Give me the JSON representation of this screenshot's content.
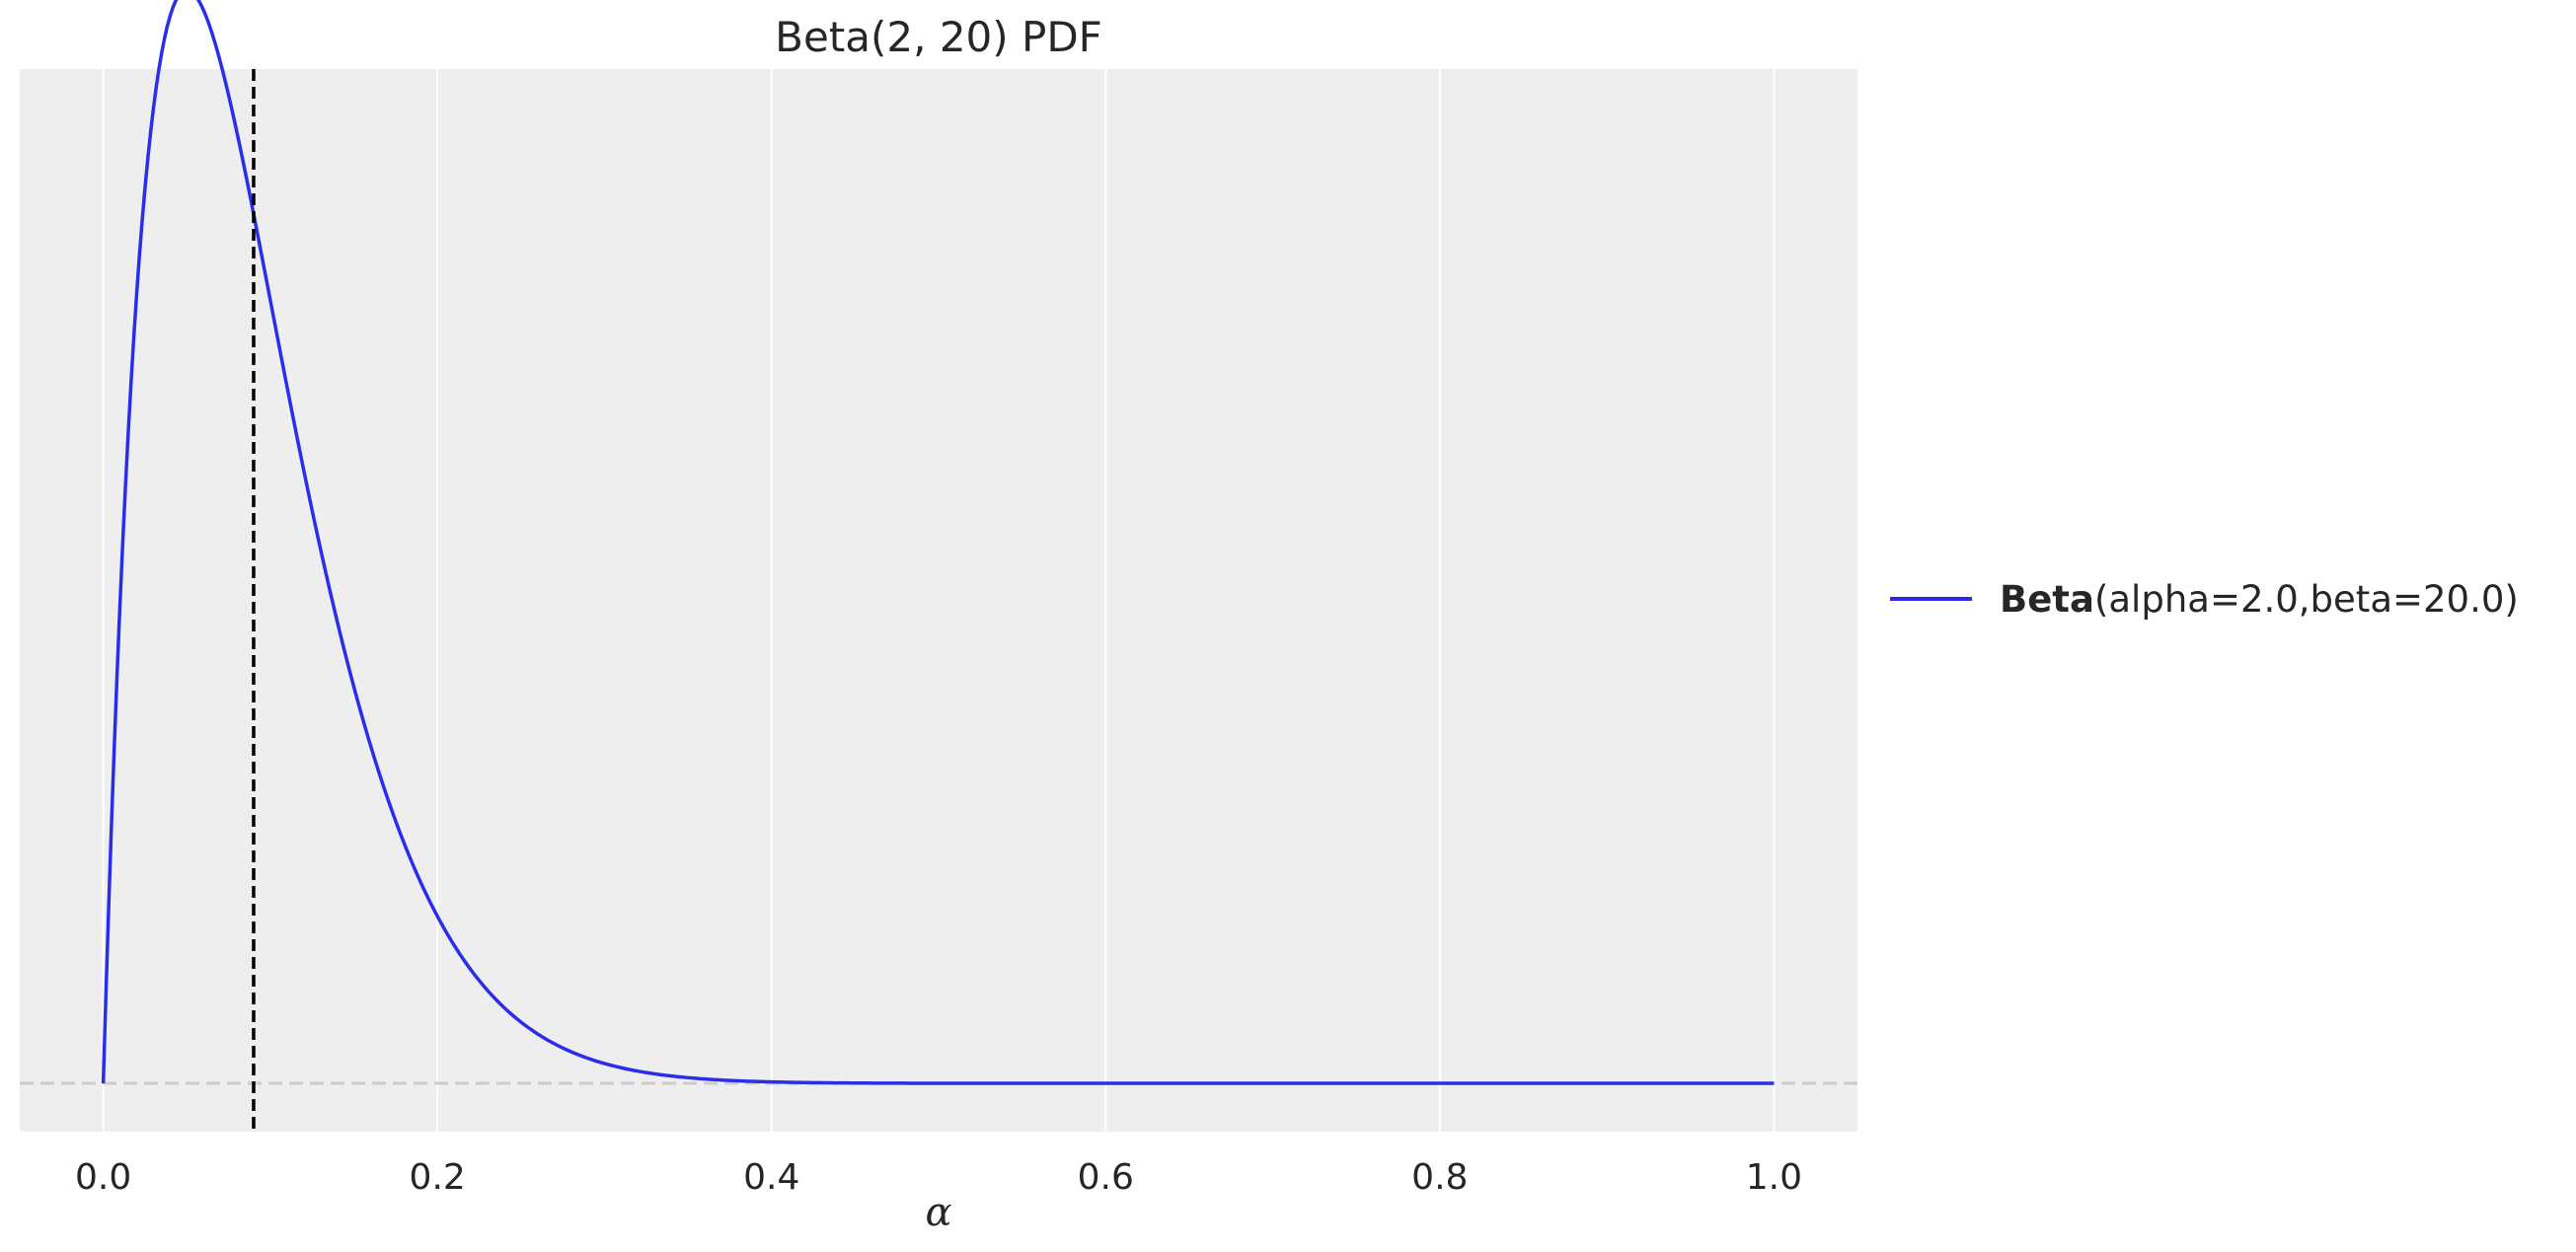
{
  "chart_data": {
    "type": "line",
    "title": "Beta(2, 20) PDF",
    "xlabel": "α",
    "ylabel": "",
    "xlim": [
      -0.05,
      1.05
    ],
    "ylim": [
      -0.35,
      7.35
    ],
    "xticks": [
      0.0,
      0.2,
      0.4,
      0.6,
      0.8,
      1.0
    ],
    "xtick_labels": [
      "0.0",
      "0.2",
      "0.4",
      "0.6",
      "0.8",
      "1.0"
    ],
    "grid": "vertical",
    "legend_placement": "right",
    "series": [
      {
        "legend_bold": "Beta",
        "legend_rest": "(alpha=2.0,beta=20.0)",
        "color": "#2a2eec",
        "distribution": "beta",
        "alpha": 2.0,
        "beta": 20.0,
        "x_range": [
          0.0,
          1.0
        ]
      }
    ],
    "reference_lines": [
      {
        "orientation": "vertical",
        "x": 0.09,
        "style": "dashed",
        "color": "#000000"
      },
      {
        "orientation": "horizontal",
        "y": 0.0,
        "style": "dashed",
        "color": "#cccccc"
      }
    ],
    "background_color": "#eeeeee",
    "grid_color": "#ffffff"
  }
}
